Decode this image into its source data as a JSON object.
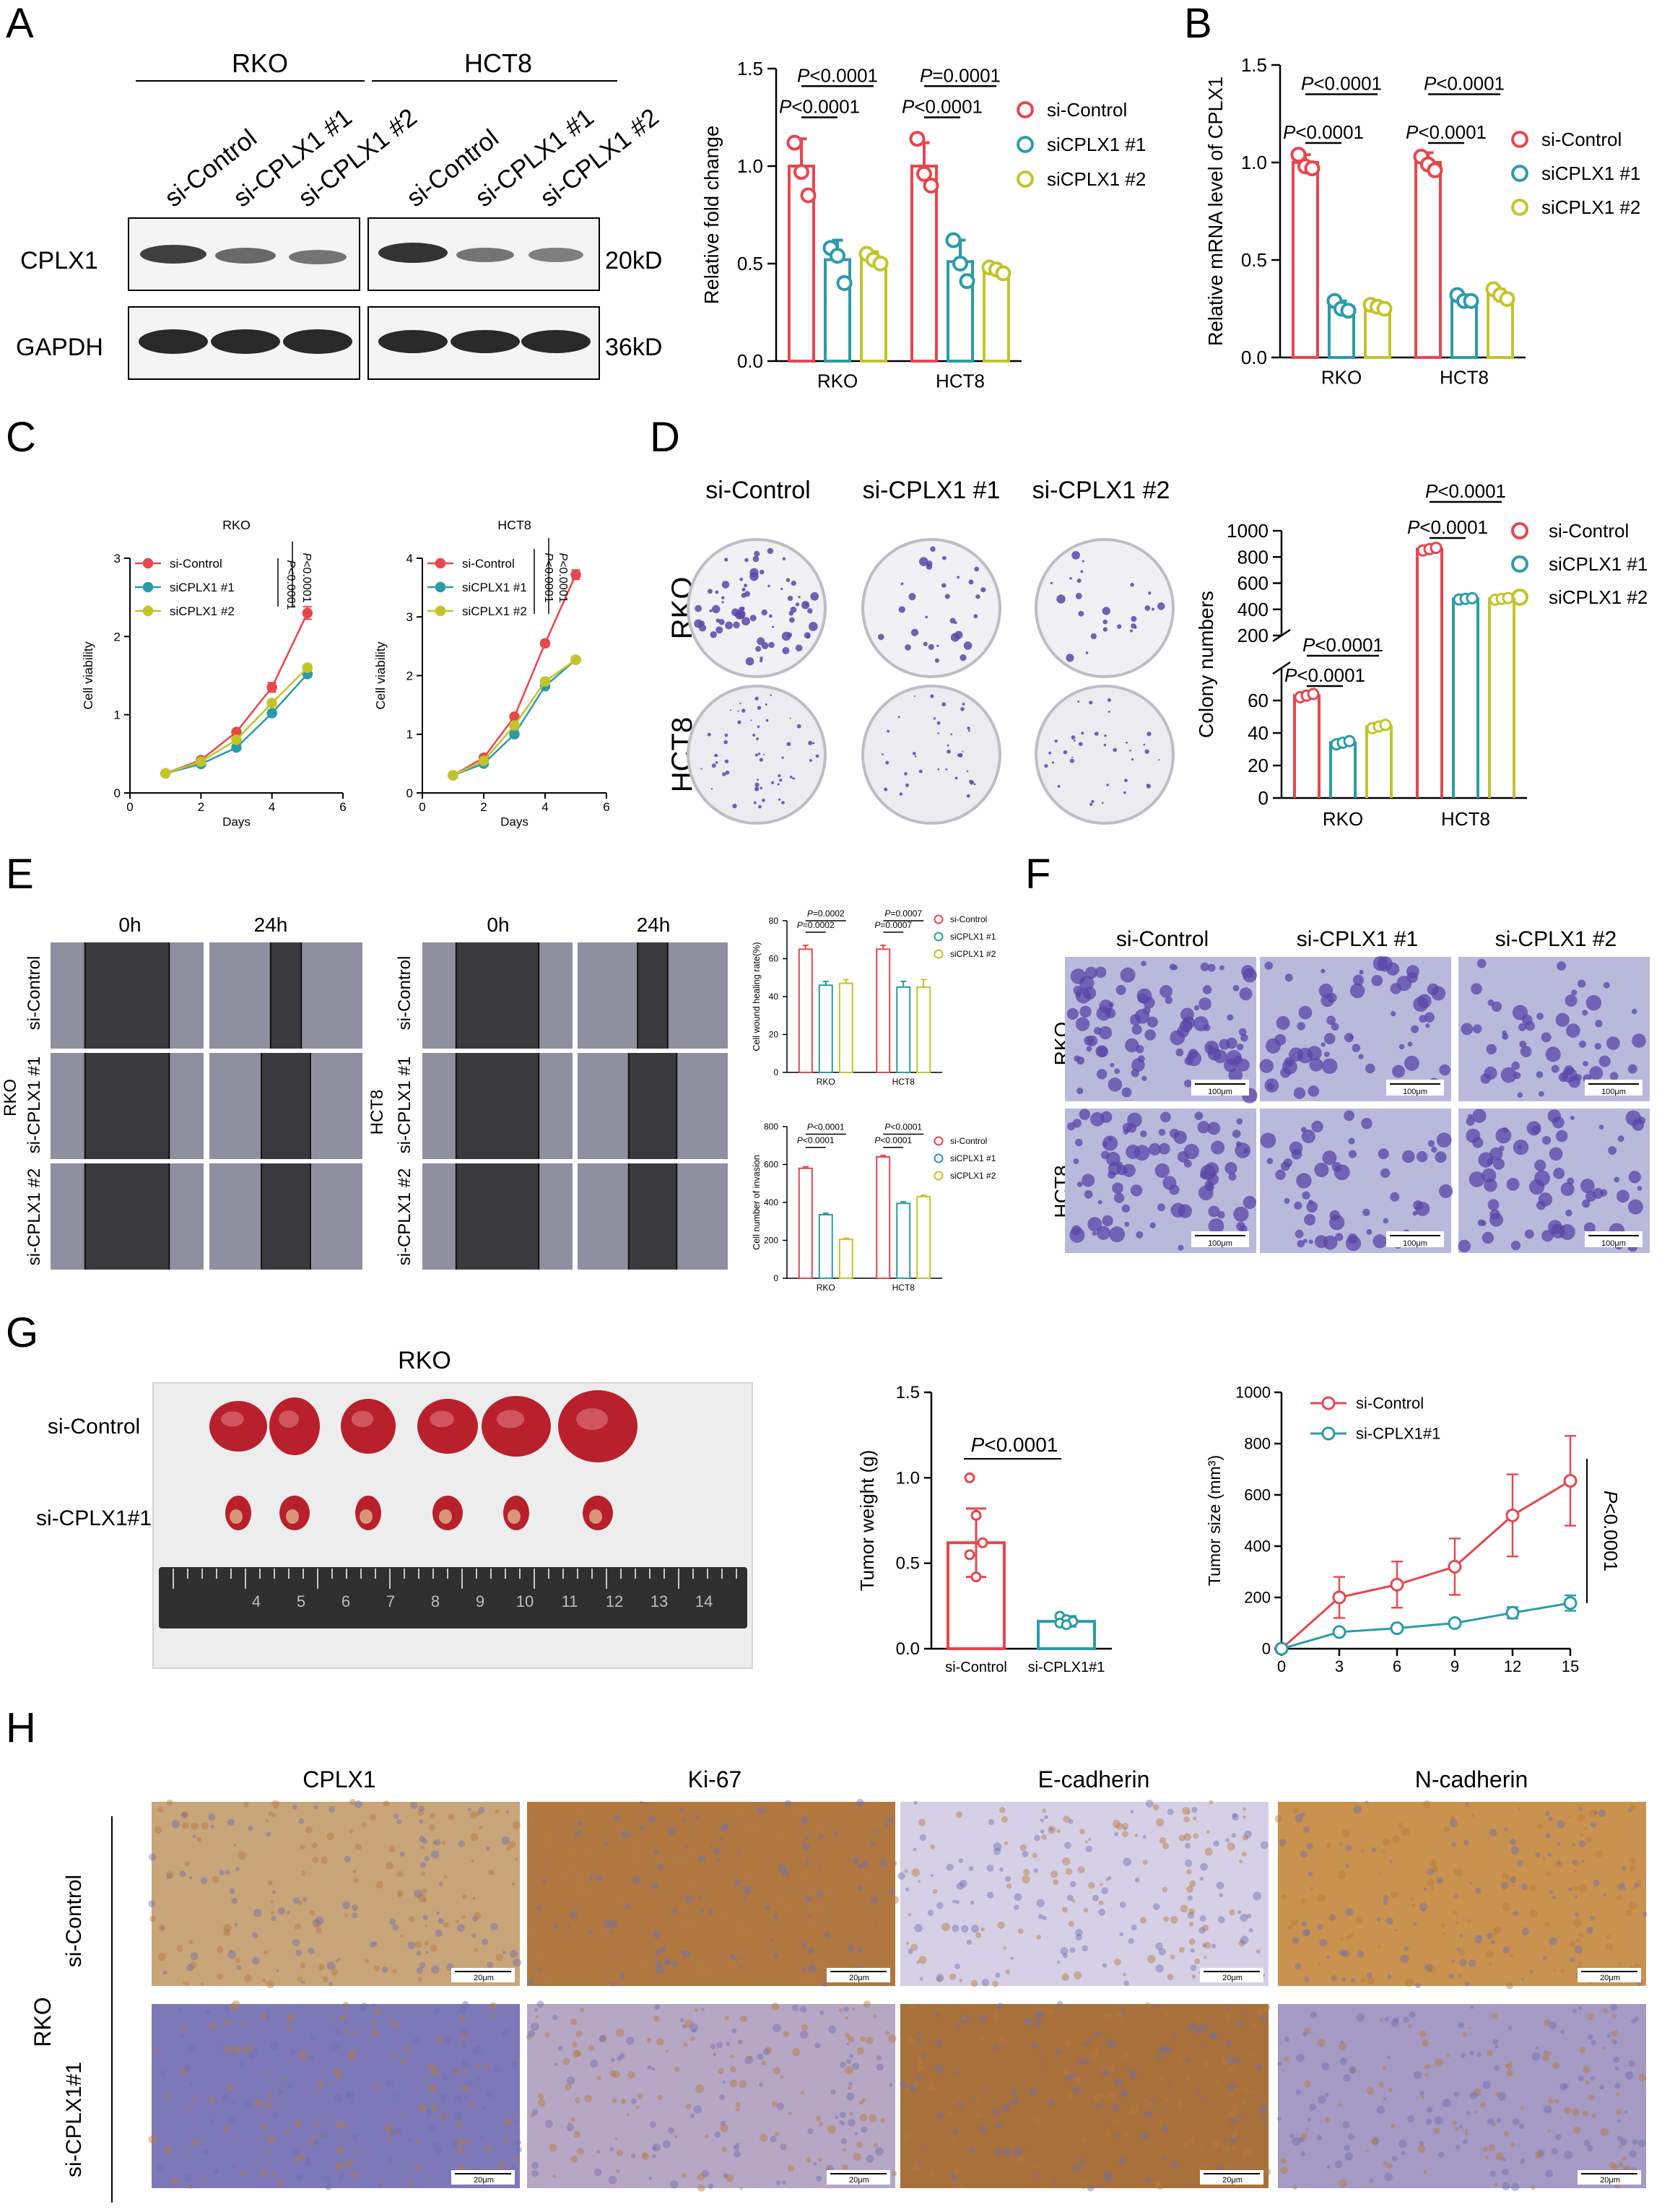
{
  "colors": {
    "control": "#e8464d",
    "cplx1": "#2a9ca8",
    "cplx2": "#c2c42a",
    "ihc_brown": "#b57a3e",
    "ihc_blue": "#6f6fb0",
    "crystal": "#5a46a8",
    "tissue": "#b8202c"
  },
  "panels": {
    "A": {
      "letter": "A",
      "blot": {
        "groups": [
          "RKO",
          "HCT8"
        ],
        "lanes": [
          "si-Control",
          "si-CPLX1 #1",
          "si-CPLX1 #2"
        ],
        "rows": [
          {
            "name": "CPLX1",
            "kd": "20kD"
          },
          {
            "name": "GAPDH",
            "kd": "36kD"
          }
        ]
      }
    },
    "B": {
      "letter": "B"
    },
    "C": {
      "letter": "C"
    },
    "D": {
      "letter": "D",
      "plate_cols": [
        "si-Control",
        "si-CPLX1 #1",
        "si-CPLX1 #2"
      ],
      "plate_rows": [
        "RKO",
        "HCT8"
      ]
    },
    "E": {
      "letter": "E",
      "time_cols": [
        "0h",
        "24h"
      ],
      "rows": [
        "si-Control",
        "si-CPLX1 #1",
        "si-CPLX1 #2"
      ],
      "lines": [
        "RKO",
        "HCT8"
      ]
    },
    "F": {
      "letter": "F",
      "cols": [
        "si-Control",
        "si-CPLX1 #1",
        "si-CPLX1 #2"
      ],
      "rows": [
        "RKO",
        "HCT8"
      ],
      "scale": "100μm"
    },
    "G": {
      "letter": "G",
      "photo_title": "RKO",
      "photo_rows": [
        "si-Control",
        "si-CPLX1#1"
      ],
      "ruler_marks": [
        "4",
        "5",
        "6",
        "7",
        "8",
        "9",
        "10",
        "11",
        "12",
        "13",
        "14"
      ]
    },
    "H": {
      "letter": "H",
      "cols": [
        "CPLX1",
        "Ki-67",
        "E-cadherin",
        "N-cadherin"
      ],
      "rows": [
        "si-Control",
        "si-CPLX1#1"
      ],
      "side": "RKO",
      "scale": "20μm"
    }
  },
  "chart_data": [
    {
      "id": "A-bar",
      "type": "bar",
      "categories": [
        "RKO",
        "HCT8"
      ],
      "series": [
        {
          "name": "si-Control",
          "values": [
            1.0,
            1.0
          ],
          "points": [
            [
              1.12,
              0.97,
              0.85
            ],
            [
              1.14,
              0.96,
              0.9
            ]
          ],
          "err": [
            0.14,
            0.12
          ]
        },
        {
          "name": "siCPLX1 #1",
          "values": [
            0.52,
            0.51
          ],
          "points": [
            [
              0.58,
              0.54,
              0.4
            ],
            [
              0.62,
              0.5,
              0.41
            ]
          ],
          "err": [
            0.1,
            0.11
          ]
        },
        {
          "name": "siCPLX1 #2",
          "values": [
            0.52,
            0.46
          ],
          "points": [
            [
              0.55,
              0.52,
              0.5
            ],
            [
              0.48,
              0.47,
              0.45
            ]
          ],
          "err": [
            0.04,
            0.03
          ]
        }
      ],
      "ylabel": "Relative fold change",
      "ylim": [
        0,
        1.5
      ],
      "yticks": [
        "0.0",
        "0.5",
        "1.0",
        "1.5"
      ],
      "pvalues": [
        "P<0.0001",
        "P<0.0001",
        "P<0.0001",
        "P=0.0001"
      ]
    },
    {
      "id": "B-bar",
      "type": "bar",
      "categories": [
        "RKO",
        "HCT8"
      ],
      "series": [
        {
          "name": "si-Control",
          "values": [
            1.0,
            1.0
          ],
          "points": [
            [
              1.04,
              0.98,
              0.97
            ],
            [
              1.03,
              0.99,
              0.96
            ]
          ],
          "err": [
            0.04,
            0.05
          ]
        },
        {
          "name": "siCPLX1 #1",
          "values": [
            0.26,
            0.3
          ],
          "points": [
            [
              0.29,
              0.25,
              0.24
            ],
            [
              0.32,
              0.29,
              0.29
            ]
          ],
          "err": [
            0.03,
            0.02
          ]
        },
        {
          "name": "siCPLX1 #2",
          "values": [
            0.26,
            0.32
          ],
          "points": [
            [
              0.27,
              0.26,
              0.25
            ],
            [
              0.35,
              0.32,
              0.3
            ]
          ],
          "err": [
            0.02,
            0.03
          ]
        }
      ],
      "ylabel": "Relative mRNA level of CPLX1",
      "ylim": [
        0,
        1.5
      ],
      "yticks": [
        "0.0",
        "0.5",
        "1.0",
        "1.5"
      ],
      "pvalues": [
        "P<0.0001",
        "P<0.0001",
        "P<0.0001",
        "P<0.0001"
      ]
    },
    {
      "id": "C-rko",
      "type": "line",
      "title": "RKO",
      "x": [
        1,
        2,
        3,
        4,
        5
      ],
      "series": [
        {
          "name": "si-Control",
          "values": [
            0.25,
            0.42,
            0.78,
            1.35,
            2.3
          ],
          "err": [
            0.02,
            0.03,
            0.03,
            0.06,
            0.08
          ]
        },
        {
          "name": "siCPLX1 #1",
          "values": [
            0.25,
            0.37,
            0.58,
            1.02,
            1.52
          ],
          "err": [
            0.02,
            0.02,
            0.03,
            0.03,
            0.04
          ]
        },
        {
          "name": "siCPLX1 #2",
          "values": [
            0.25,
            0.4,
            0.68,
            1.15,
            1.6
          ],
          "err": [
            0.02,
            0.02,
            0.03,
            0.04,
            0.04
          ]
        }
      ],
      "xlabel": "Days",
      "ylabel": "Cell viability",
      "xlim": [
        0,
        6
      ],
      "ylim": [
        0,
        3
      ],
      "xticks": [
        "0",
        "2",
        "4",
        "6"
      ],
      "yticks": [
        "0",
        "1",
        "2",
        "3"
      ],
      "pvalues": [
        "P<0.0001",
        "P<0.0001"
      ]
    },
    {
      "id": "C-hct8",
      "type": "line",
      "title": "HCT8",
      "x": [
        1,
        2,
        3,
        4,
        5
      ],
      "series": [
        {
          "name": "si-Control",
          "values": [
            0.3,
            0.6,
            1.3,
            2.55,
            3.72
          ],
          "err": [
            0.02,
            0.03,
            0.04,
            0.05,
            0.08
          ]
        },
        {
          "name": "siCPLX1 #1",
          "values": [
            0.3,
            0.5,
            1.0,
            1.82,
            2.27
          ],
          "err": [
            0.02,
            0.02,
            0.03,
            0.04,
            0.04
          ]
        },
        {
          "name": "siCPLX1 #2",
          "values": [
            0.3,
            0.55,
            1.15,
            1.9,
            2.27
          ],
          "err": [
            0.02,
            0.02,
            0.03,
            0.04,
            0.04
          ]
        }
      ],
      "xlabel": "Days",
      "ylabel": "Cell viability",
      "xlim": [
        0,
        6
      ],
      "ylim": [
        0,
        4
      ],
      "xticks": [
        "0",
        "2",
        "4",
        "6"
      ],
      "yticks": [
        "0",
        "1",
        "2",
        "3",
        "4"
      ],
      "pvalues": [
        "P<0.0001",
        "P<0.0001"
      ]
    },
    {
      "id": "D-bar",
      "type": "bar",
      "categories": [
        "RKO",
        "HCT8"
      ],
      "series": [
        {
          "name": "si-Control",
          "values": [
            63,
            860
          ],
          "err": [
            2,
            20
          ]
        },
        {
          "name": "siCPLX1 #1",
          "values": [
            34,
            480
          ],
          "err": [
            2,
            10
          ]
        },
        {
          "name": "siCPLX1 #2",
          "values": [
            44,
            480
          ],
          "err": [
            2,
            12
          ]
        }
      ],
      "ylabel": "Colony numbers",
      "axis_break": [
        80,
        200
      ],
      "yticks_low": [
        "0",
        "20",
        "40",
        "60"
      ],
      "yticks_high": [
        "200",
        "400",
        "600",
        "800",
        "1000"
      ],
      "pvalues": [
        "P<0.0001",
        "P<0.0001",
        "P<0.0001",
        "P<0.0001"
      ]
    },
    {
      "id": "E-wound",
      "type": "bar",
      "categories": [
        "RKO",
        "HCT8"
      ],
      "series": [
        {
          "name": "si-Control",
          "values": [
            65,
            65
          ],
          "err": [
            2,
            2
          ]
        },
        {
          "name": "siCPLX1 #1",
          "values": [
            46,
            45
          ],
          "err": [
            2,
            3
          ]
        },
        {
          "name": "siCPLX1 #2",
          "values": [
            47,
            45
          ],
          "err": [
            2,
            4
          ]
        }
      ],
      "ylabel": "Cell wound healing rate(%)",
      "ylim": [
        0,
        80
      ],
      "yticks": [
        "0",
        "20",
        "40",
        "60",
        "80"
      ],
      "pvalues": [
        "P=0.0002",
        "P=0.0002",
        "P=0.0007",
        "P=0.0007"
      ]
    },
    {
      "id": "E-invasion",
      "type": "bar",
      "categories": [
        "RKO",
        "HCT8"
      ],
      "series": [
        {
          "name": "si-Control",
          "values": [
            580,
            640
          ],
          "err": [
            8,
            8
          ]
        },
        {
          "name": "siCPLX1 #1",
          "values": [
            335,
            395
          ],
          "err": [
            8,
            8
          ]
        },
        {
          "name": "siCPLX1 #2",
          "values": [
            205,
            430
          ],
          "err": [
            6,
            8
          ]
        }
      ],
      "ylabel": "Cell number of invasion",
      "ylim": [
        0,
        800
      ],
      "yticks": [
        "0",
        "200",
        "400",
        "600",
        "800"
      ],
      "pvalues": [
        "P<0.0001",
        "P<0.0001",
        "P<0.0001",
        "P<0.0001"
      ]
    },
    {
      "id": "G-weight",
      "type": "bar",
      "categories": [
        "si-Control",
        "si-CPLX1#1"
      ],
      "values": [
        0.62,
        0.16
      ],
      "err": [
        0.2,
        0.03
      ],
      "points": [
        [
          1.0,
          0.78,
          0.62,
          0.55,
          0.42
        ],
        [
          0.19,
          0.17,
          0.16,
          0.15,
          0.14
        ]
      ],
      "ylabel": "Tumor weight (g)",
      "ylim": [
        0,
        1.5
      ],
      "yticks": [
        "0.0",
        "0.5",
        "1.0",
        "1.5"
      ],
      "pvalue": "P<0.0001"
    },
    {
      "id": "G-size",
      "type": "line",
      "x": [
        0,
        3,
        6,
        9,
        12,
        15
      ],
      "series": [
        {
          "name": "si-Control",
          "values": [
            0,
            200,
            250,
            320,
            520,
            655
          ],
          "err": [
            0,
            80,
            90,
            110,
            160,
            175
          ]
        },
        {
          "name": "si-CPLX1#1",
          "values": [
            0,
            65,
            80,
            100,
            140,
            178
          ],
          "err": [
            0,
            10,
            12,
            14,
            22,
            30
          ]
        }
      ],
      "ylabel": "Tumor size (mm³)",
      "xlim": [
        0,
        15
      ],
      "ylim": [
        0,
        1000
      ],
      "xticks": [
        "0",
        "3",
        "6",
        "9",
        "12",
        "15"
      ],
      "yticks": [
        "0",
        "200",
        "400",
        "600",
        "800",
        "1000"
      ],
      "pvalue": "P<0.0001"
    }
  ]
}
